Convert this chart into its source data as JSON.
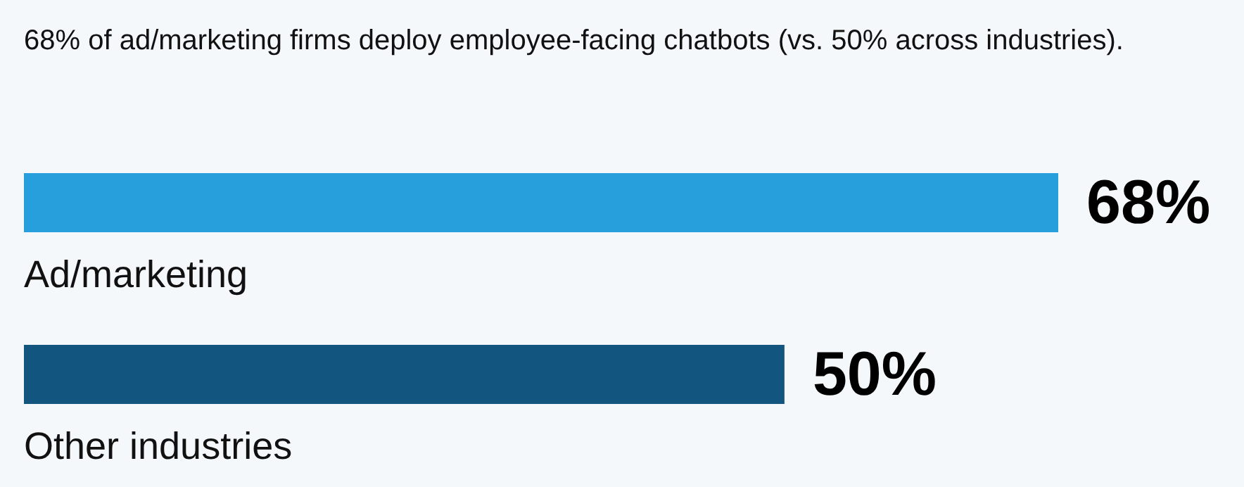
{
  "chart_data": {
    "type": "bar",
    "orientation": "horizontal",
    "title": "68% of ad/marketing firms deploy employee-facing chatbots (vs. 50% across industries).",
    "categories": [
      "Ad/marketing",
      "Other industries"
    ],
    "values": [
      68,
      50
    ],
    "colors": [
      "#279fdd",
      "#12557e"
    ],
    "value_labels": [
      "68%",
      "50%"
    ],
    "grid": false,
    "legend": false
  }
}
